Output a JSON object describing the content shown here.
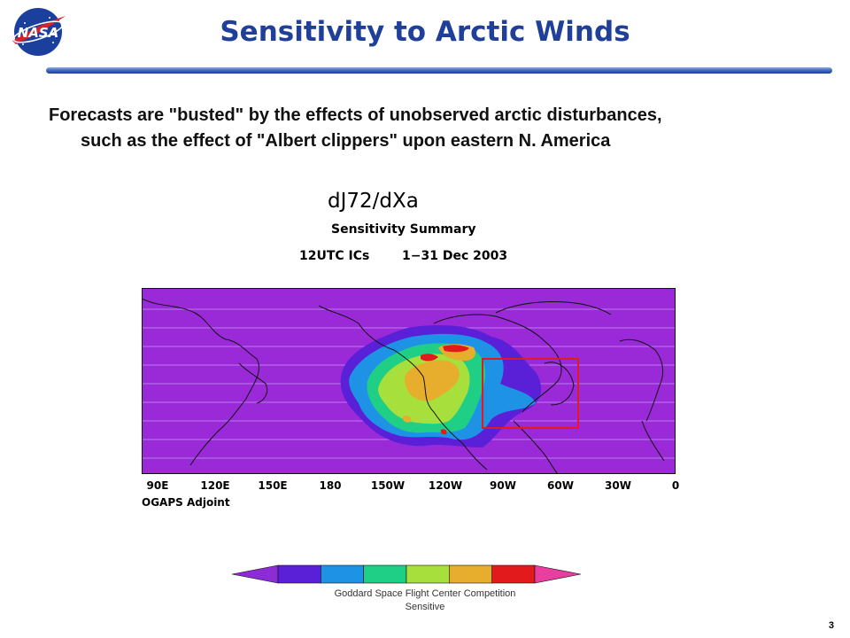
{
  "header": {
    "logo_text": "NASA",
    "title": "Sensitivity to Arctic Winds"
  },
  "bullet": {
    "line1": "Forecasts are \"busted\" by the effects of unobserved arctic disturbances,",
    "line2": "such as the effect of \"Albert clippers\" upon eastern N. America"
  },
  "figure": {
    "title": "dJ72/dXa",
    "subtitle": "Sensitivity Summary",
    "ics_label": "12UTC ICs",
    "dates_label": "1−31 Dec 2003",
    "x_ticks": [
      "90E",
      "120E",
      "150E",
      "180",
      "150W",
      "120W",
      "90W",
      "60W",
      "30W",
      "0"
    ],
    "credit": "OGAPS Adjoint",
    "colorbar_colors": [
      "#8d2bd6",
      "#5a20d8",
      "#1e93e6",
      "#1fcf86",
      "#a7e03c",
      "#e7ad2c",
      "#e21a1c",
      "#e83ea0"
    ],
    "background_color": "#9a29d8"
  },
  "footer": {
    "line1": "Goddard Space Flight Center Competition",
    "line2": "Sensitive"
  },
  "page_number": "3"
}
